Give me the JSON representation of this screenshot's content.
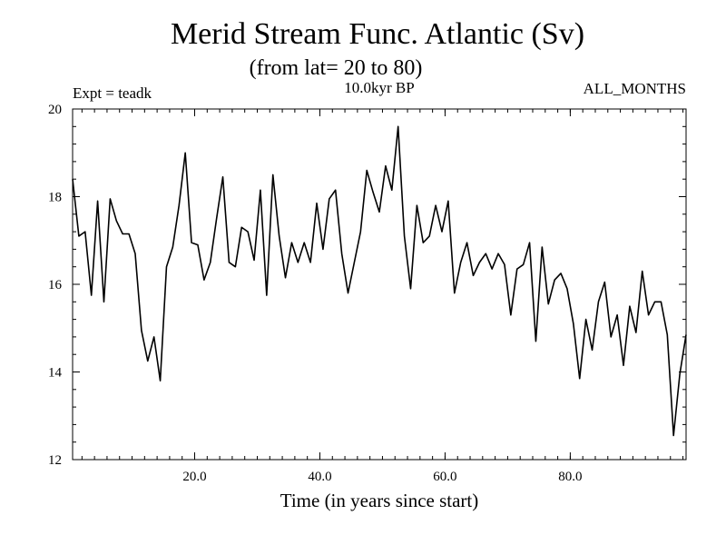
{
  "chart_data": {
    "type": "line",
    "title": "Merid Stream Func. Atlantic (Sv)",
    "subtitle": "(from lat= 20 to 80)",
    "left_label": "Expt = teadk",
    "center_label": "10.0kyr BP",
    "right_label": "ALL_MONTHS",
    "xlabel": "Time (in years since start)",
    "ylabel": "",
    "xlim": [
      0.5,
      98.5
    ],
    "ylim": [
      12,
      20
    ],
    "x_ticks": [
      {
        "value": 20,
        "label": "20.0"
      },
      {
        "value": 40,
        "label": "40.0"
      },
      {
        "value": 60,
        "label": "60.0"
      },
      {
        "value": 80,
        "label": "80.0"
      }
    ],
    "y_ticks": [
      {
        "value": 12,
        "label": "12"
      },
      {
        "value": 14,
        "label": "14"
      },
      {
        "value": 16,
        "label": "16"
      },
      {
        "value": 18,
        "label": "18"
      },
      {
        "value": 20,
        "label": "20"
      }
    ],
    "x_minor_step": 2,
    "y_minor_step": 0.4,
    "grid": false,
    "series": [
      {
        "name": "Merid Stream Func.",
        "color": "#000000",
        "x_start": 0.5,
        "x_step": 1,
        "values": [
          18.4,
          17.1,
          17.2,
          15.75,
          17.9,
          15.6,
          17.95,
          17.45,
          17.15,
          17.15,
          16.7,
          14.95,
          14.25,
          14.8,
          13.8,
          16.4,
          16.85,
          17.8,
          19.0,
          16.95,
          16.9,
          16.1,
          16.5,
          17.5,
          18.45,
          16.5,
          16.4,
          17.3,
          17.2,
          16.55,
          18.15,
          15.75,
          18.5,
          17.1,
          16.15,
          16.95,
          16.5,
          16.95,
          16.5,
          17.85,
          16.8,
          17.95,
          18.15,
          16.7,
          15.8,
          16.5,
          17.2,
          18.6,
          18.1,
          17.65,
          18.7,
          18.15,
          19.6,
          17.1,
          15.9,
          17.8,
          16.95,
          17.1,
          17.8,
          17.2,
          17.9,
          15.8,
          16.5,
          16.95,
          16.2,
          16.5,
          16.7,
          16.35,
          16.7,
          16.45,
          15.3,
          16.35,
          16.45,
          16.95,
          14.7,
          16.85,
          15.55,
          16.1,
          16.25,
          15.9,
          15.1,
          13.85,
          15.2,
          14.5,
          15.6,
          16.05,
          14.8,
          15.3,
          14.15,
          15.5,
          14.9,
          16.3,
          15.3,
          15.6,
          15.6,
          14.85,
          12.55,
          13.95,
          14.85
        ]
      }
    ]
  }
}
